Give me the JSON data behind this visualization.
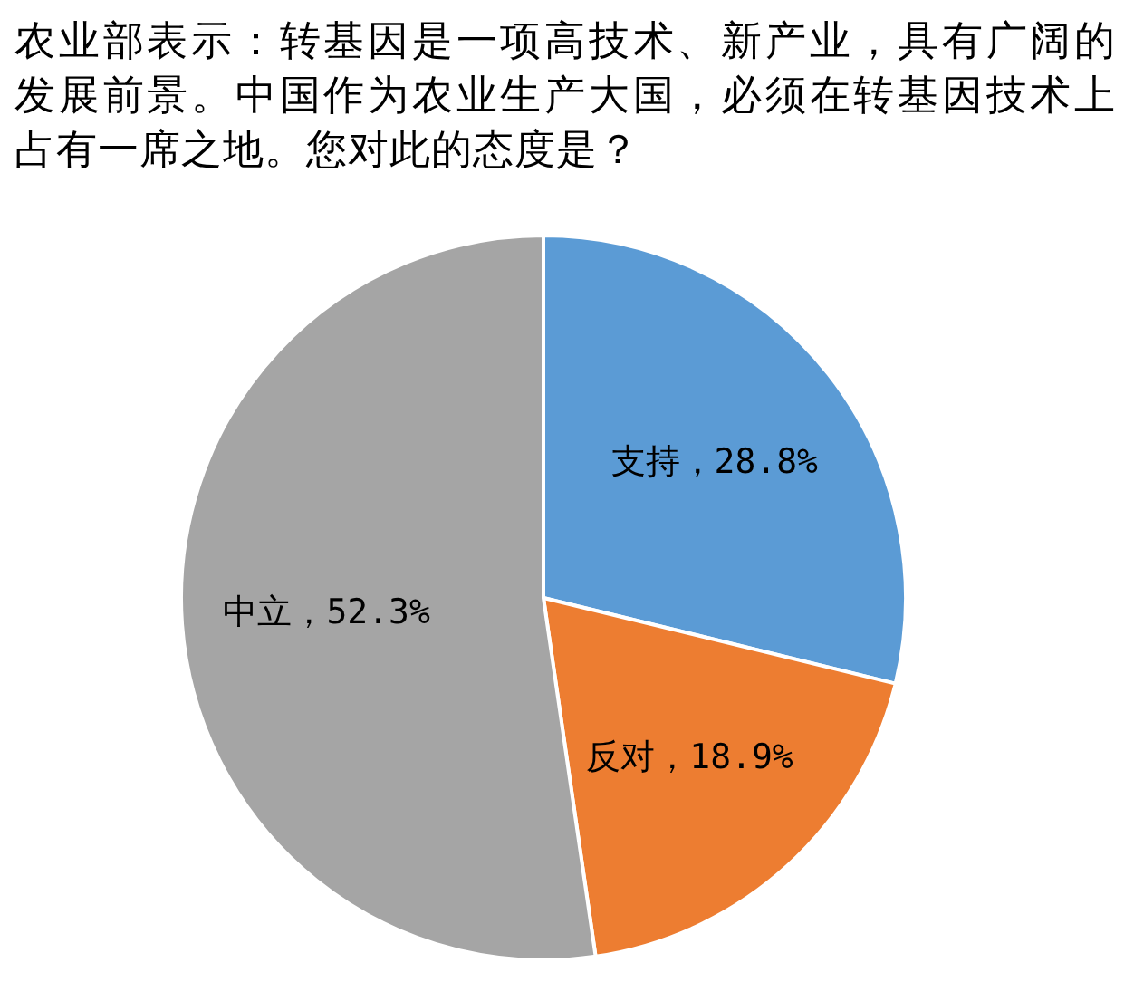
{
  "chart_data": {
    "type": "pie",
    "title": "农业部表示：转基因是一项高技术、新产业，具有广阔的发展前景。中国作为农业生产大国，必须在转基因技术上占有一席之地。您对此的态度是？",
    "categories": [
      "支持",
      "反对",
      "中立"
    ],
    "values": [
      28.8,
      18.9,
      52.3
    ],
    "value_labels": [
      "28.8%",
      "18.9%",
      "52.3%"
    ],
    "colors": [
      "#5b9bd5",
      "#ed7d31",
      "#a5a5a5"
    ]
  }
}
